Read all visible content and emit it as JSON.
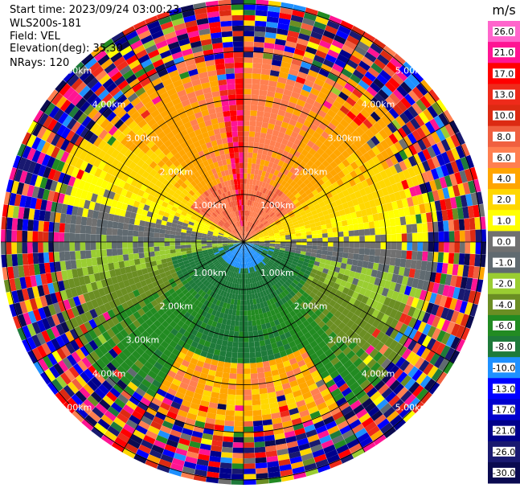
{
  "header": {
    "start_time": "Start time: 2023/09/24 03:00:23",
    "instrument": "WLS200s-181",
    "field": "Field: VEL",
    "elevation": "Elevation(deg): 35.30",
    "nrays": "NRays: 120"
  },
  "chart_data": {
    "type": "heatmap",
    "projection": "polar-ppi",
    "field": "VEL",
    "units": "m/s",
    "nrays": 120,
    "range_rings_km": [
      1.0,
      2.0,
      3.0,
      4.0,
      5.0
    ],
    "ring_labels": [
      "1.00km",
      "2.00km",
      "3.00km",
      "4.00km",
      "5.00km"
    ],
    "max_range_km": 5.1,
    "colorbar": {
      "title": "m/s",
      "ticks": [
        "26.0",
        "21.0",
        "17.0",
        "13.0",
        "10.0",
        "8.0",
        "6.0",
        "4.0",
        "2.0",
        "1.0",
        "0.0",
        "-1.0",
        "-2.0",
        "-4.0",
        "-6.0",
        "-8.0",
        "-10.0",
        "-13.0",
        "-17.0",
        "-21.0",
        "-26.0",
        "-30.0"
      ],
      "colors": [
        "#ff66cc",
        "#ff1493",
        "#ff0000",
        "#ee2a1a",
        "#dc2a12",
        "#f06040",
        "#ff7f50",
        "#ffa500",
        "#ffd700",
        "#ffff00",
        "#707070",
        "#606a70",
        "#9acd32",
        "#6b8e23",
        "#228b22",
        "#1e7a3a",
        "#1e90ff",
        "#0000ff",
        "#0000cd",
        "#00008b",
        "#191970",
        "#0a0a50"
      ]
    }
  }
}
